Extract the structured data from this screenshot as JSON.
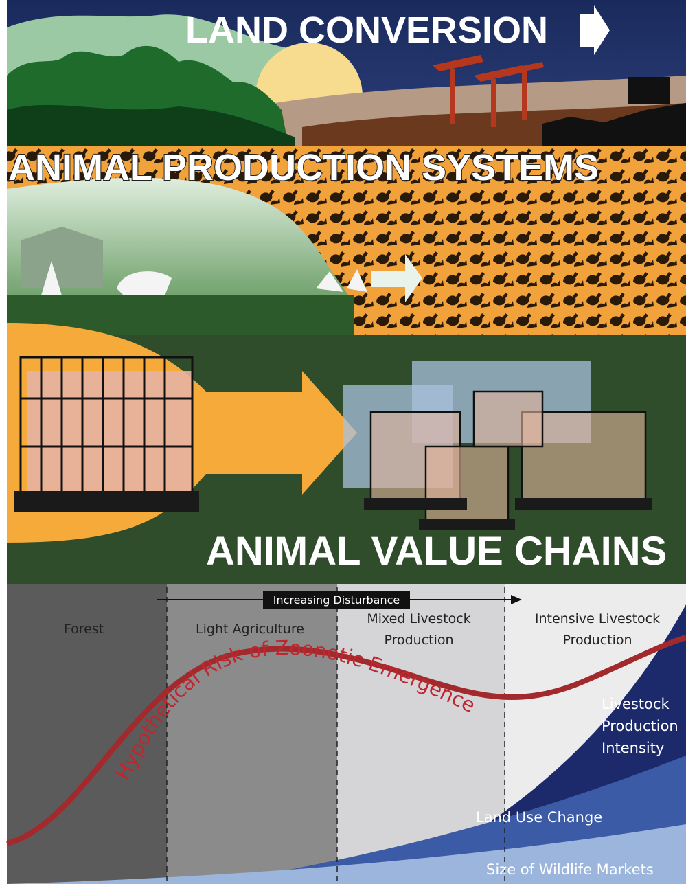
{
  "panels": {
    "land_conversion": {
      "title": "LAND CONVERSION"
    },
    "production_systems": {
      "title": "ANIMAL PRODUCTION SYSTEMS"
    },
    "value_chains": {
      "title": "ANIMAL VALUE CHAINS"
    }
  },
  "gradient": {
    "arrow_label": "Increasing Disturbance",
    "zones": [
      {
        "lines": [
          "Forest"
        ]
      },
      {
        "lines": [
          "Light Agriculture"
        ]
      },
      {
        "lines": [
          "Mixed Livestock",
          "Production"
        ]
      },
      {
        "lines": [
          "Intensive Livestock",
          "Production"
        ]
      }
    ],
    "curve_label": "Hypothetical Risk of Zoonotic Emergence",
    "areas": [
      {
        "lines": [
          "Livestock",
          "Production",
          "Intensity"
        ]
      },
      {
        "lines": [
          "Land Use Change"
        ]
      },
      {
        "lines": [
          "Size of Wildlife Markets"
        ]
      }
    ]
  }
}
